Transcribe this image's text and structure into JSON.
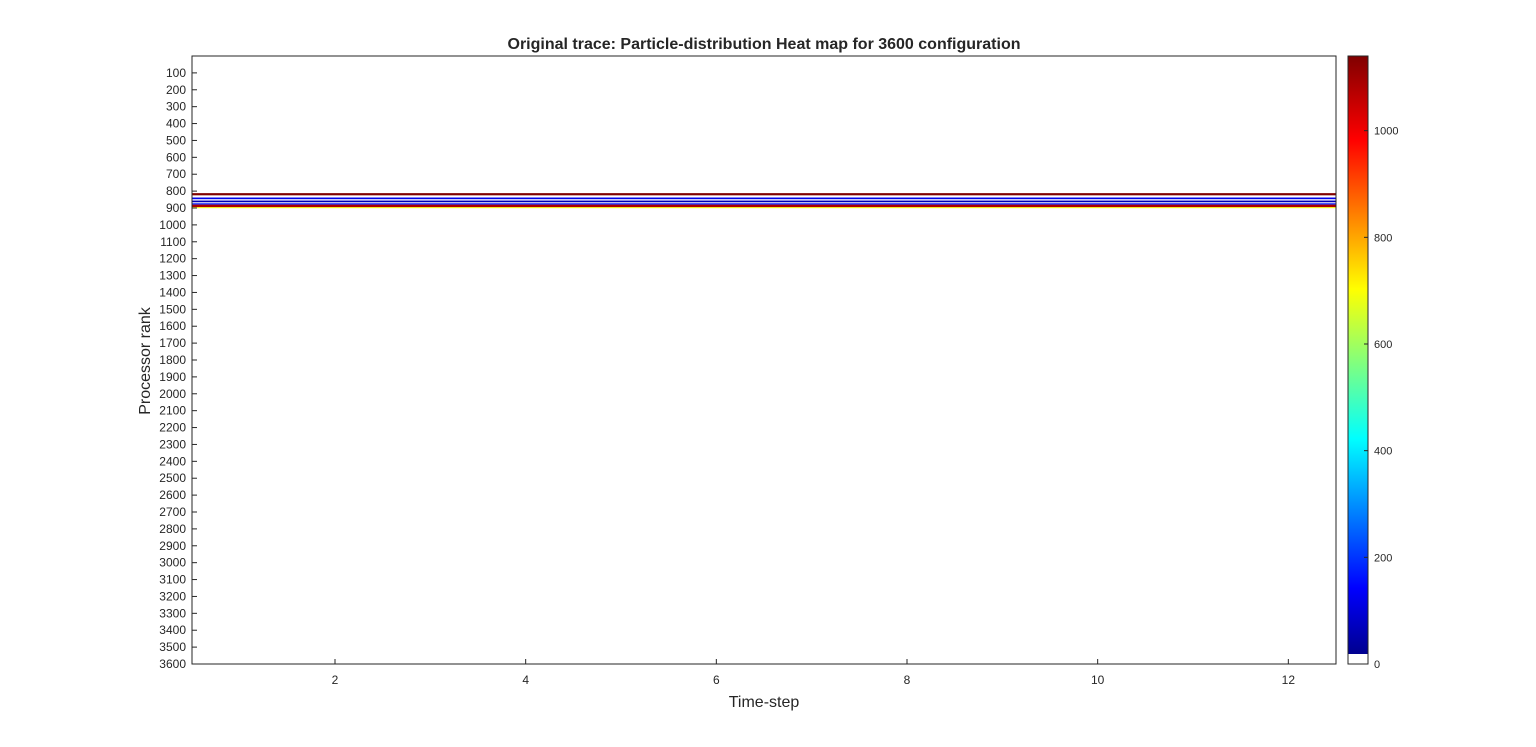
{
  "chart_data": {
    "type": "heatmap",
    "title": "Original trace: Particle-distribution Heat map for 3600 configuration",
    "xlabel": "Time-step",
    "ylabel": "Processor rank",
    "x_tick_labels": [
      "2",
      "4",
      "6",
      "8",
      "10",
      "12"
    ],
    "x_ticks": [
      2,
      4,
      6,
      8,
      10,
      12
    ],
    "xlim": [
      0.5,
      12.5
    ],
    "y_tick_labels": [
      "100",
      "200",
      "300",
      "400",
      "500",
      "600",
      "700",
      "800",
      "900",
      "1000",
      "1100",
      "1200",
      "1300",
      "1400",
      "1500",
      "1600",
      "1700",
      "1800",
      "1900",
      "2000",
      "2100",
      "2200",
      "2300",
      "2400",
      "2500",
      "2600",
      "2700",
      "2800",
      "2900",
      "3000",
      "3100",
      "3200",
      "3300",
      "3400",
      "3500",
      "3600"
    ],
    "y_ticks": [
      100,
      200,
      300,
      400,
      500,
      600,
      700,
      800,
      900,
      1000,
      1100,
      1200,
      1300,
      1400,
      1500,
      1600,
      1700,
      1800,
      1900,
      2000,
      2100,
      2200,
      2300,
      2400,
      2500,
      2600,
      2700,
      2800,
      2900,
      3000,
      3100,
      3200,
      3300,
      3400,
      3500,
      3600
    ],
    "ylim": [
      0,
      3600
    ],
    "y_reversed": true,
    "colormap": "jet-with-white-zero",
    "background_value": 0,
    "colorbar": {
      "range": [
        0,
        1140
      ],
      "tick_labels": [
        "0",
        "200",
        "400",
        "600",
        "800",
        "1000"
      ],
      "ticks": [
        0,
        200,
        400,
        600,
        800,
        1000
      ],
      "placement": "right"
    },
    "bands": [
      {
        "rank_start": 812,
        "rank_end": 825,
        "value": 1140
      },
      {
        "rank_start": 838,
        "rank_end": 848,
        "value": 120
      },
      {
        "rank_start": 856,
        "rank_end": 866,
        "value": 60
      },
      {
        "rank_start": 872,
        "rank_end": 880,
        "value": 170
      },
      {
        "rank_start": 880,
        "rank_end": 895,
        "value": 1090
      },
      {
        "rank_start": 895,
        "rank_end": 900,
        "value": 700
      }
    ]
  }
}
